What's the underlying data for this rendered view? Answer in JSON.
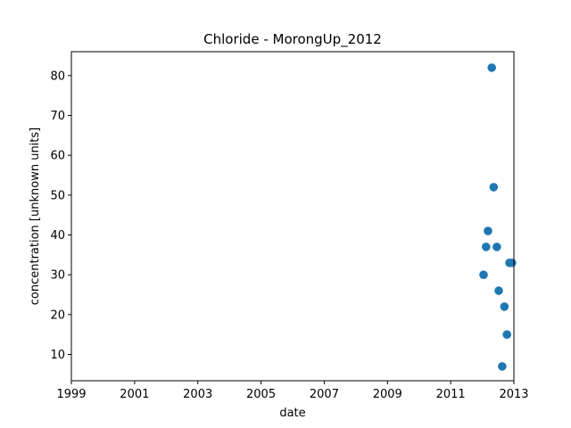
{
  "chart_data": {
    "type": "scatter",
    "title": "Chloride - MorongUp_2012",
    "xlabel": "date",
    "ylabel": "concentration [unknown units]",
    "xlim": [
      1999,
      2013
    ],
    "ylim": [
      3.4,
      86
    ],
    "x_ticks": [
      1999,
      2001,
      2003,
      2005,
      2007,
      2009,
      2011,
      2013
    ],
    "y_ticks": [
      10,
      20,
      30,
      40,
      50,
      60,
      70,
      80
    ],
    "grid": false,
    "marker_color": "#1f77b4",
    "series": [
      {
        "x": [
          2012.04,
          2012.12,
          2012.18,
          2012.3,
          2012.36,
          2012.46,
          2012.52,
          2012.63,
          2012.7,
          2012.78,
          2012.86,
          2012.94
        ],
        "y": [
          30,
          37,
          41,
          82,
          52,
          37,
          26,
          7,
          22,
          15,
          33,
          33
        ]
      }
    ]
  }
}
